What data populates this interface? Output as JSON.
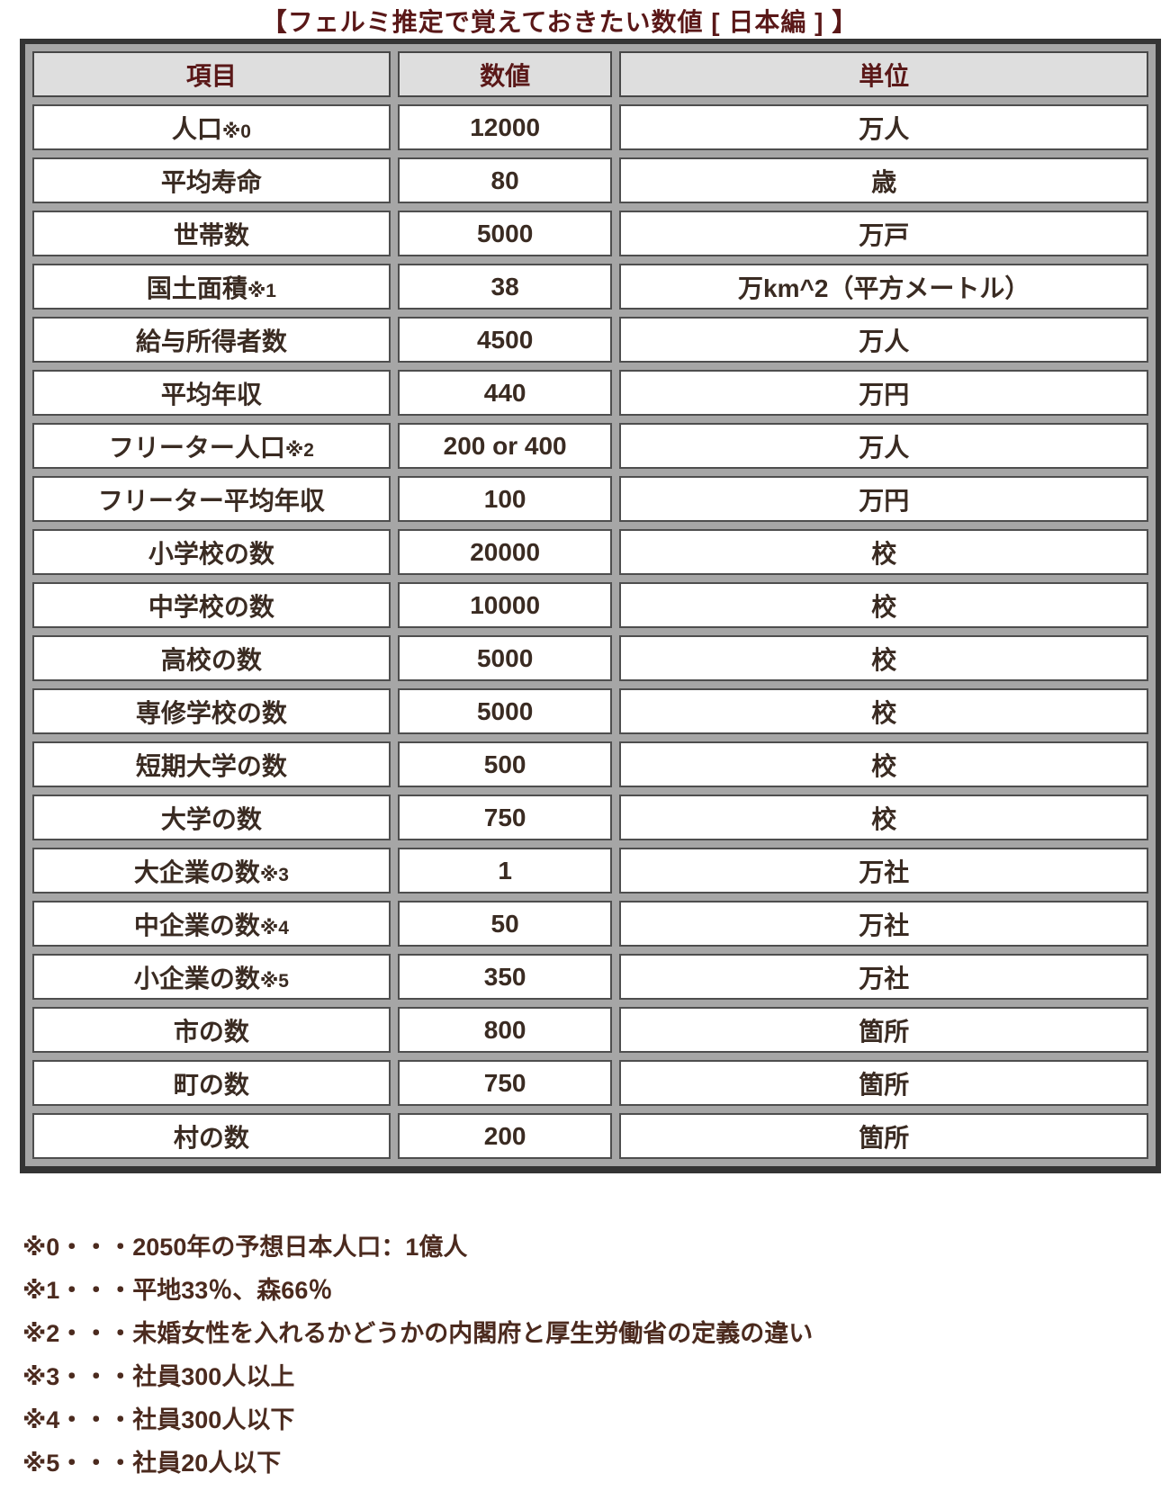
{
  "title": "【フェルミ推定で覚えておきたい数値 [ 日本編 ] 】",
  "chart_data": {
    "type": "table",
    "title": "【フェルミ推定で覚えておきたい数値 [ 日本編 ] 】",
    "columns": [
      "項目",
      "数値",
      "単位"
    ],
    "rows": [
      {
        "label": "人口",
        "note": "※0",
        "value": "12000",
        "unit": "万人"
      },
      {
        "label": "平均寿命",
        "note": "",
        "value": "80",
        "unit": "歳"
      },
      {
        "label": "世帯数",
        "note": "",
        "value": "5000",
        "unit": "万戸"
      },
      {
        "label": "国土面積",
        "note": "※1",
        "value": "38",
        "unit": "万km^2（平方メートル）"
      },
      {
        "label": "給与所得者数",
        "note": "",
        "value": "4500",
        "unit": "万人"
      },
      {
        "label": "平均年収",
        "note": "",
        "value": "440",
        "unit": "万円"
      },
      {
        "label": "フリーター人口",
        "note": "※2",
        "value": "200 or 400",
        "unit": "万人"
      },
      {
        "label": "フリーター平均年収",
        "note": "",
        "value": "100",
        "unit": "万円"
      },
      {
        "label": "小学校の数",
        "note": "",
        "value": "20000",
        "unit": "校"
      },
      {
        "label": "中学校の数",
        "note": "",
        "value": "10000",
        "unit": "校"
      },
      {
        "label": "高校の数",
        "note": "",
        "value": "5000",
        "unit": "校"
      },
      {
        "label": "専修学校の数",
        "note": "",
        "value": "5000",
        "unit": "校"
      },
      {
        "label": "短期大学の数",
        "note": "",
        "value": "500",
        "unit": "校"
      },
      {
        "label": "大学の数",
        "note": "",
        "value": "750",
        "unit": "校"
      },
      {
        "label": "大企業の数",
        "note": "※3",
        "value": "1",
        "unit": "万社"
      },
      {
        "label": "中企業の数",
        "note": "※4",
        "value": "50",
        "unit": "万社"
      },
      {
        "label": "小企業の数",
        "note": "※5",
        "value": "350",
        "unit": "万社"
      },
      {
        "label": "市の数",
        "note": "",
        "value": "800",
        "unit": "箇所"
      },
      {
        "label": "町の数",
        "note": "",
        "value": "750",
        "unit": "箇所"
      },
      {
        "label": "村の数",
        "note": "",
        "value": "200",
        "unit": "箇所"
      }
    ],
    "footnotes": [
      "※0・・・2050年の予想日本人口：1億人",
      "※1・・・平地33％、森66％",
      "※2・・・未婚女性を入れるかどうかの内閣府と厚生労働省の定義の違い",
      "※3・・・社員300人以上",
      "※4・・・社員300人以下",
      "※5・・・社員20人以下"
    ],
    "layout_hints": {
      "grid": "separated cells with gray spacing",
      "header_position": "top row"
    }
  },
  "colors": {
    "title_text": "#5a1818",
    "header_text": "#5a1818",
    "header_bg": "#dedede",
    "cell_bg": "#ffffff",
    "body_text": "#3a2b22",
    "footnote_text": "#4b2a1e",
    "frame_border": "#343434",
    "cell_border": "#4e4e4e",
    "spacing_gray": "#a6a6a6",
    "page_bg": "#ffffff"
  }
}
